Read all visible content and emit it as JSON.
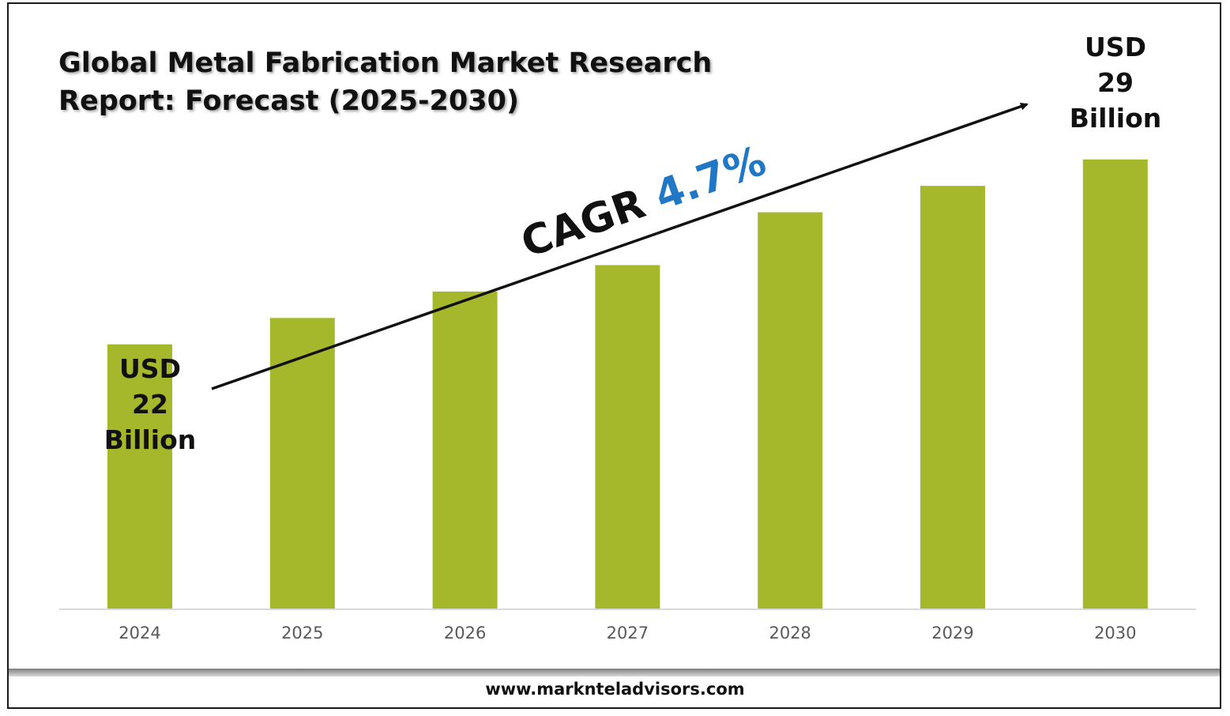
{
  "header": {
    "title_line1": "Global Metal Fabrication Market Research",
    "title_line2": "Report: Forecast (2025-2030)"
  },
  "chart_data": {
    "type": "bar",
    "categories": [
      "2024",
      "2025",
      "2026",
      "2027",
      "2028",
      "2029",
      "2030"
    ],
    "values": [
      22,
      23.0,
      24.0,
      25.0,
      27.0,
      28.0,
      29
    ],
    "ylim": [
      12.0,
      29.8
    ],
    "bar_color": "#a5b82b",
    "grid": false,
    "legend": "none",
    "annotations": {
      "start_label": [
        "USD",
        "22",
        "Billion"
      ],
      "end_label": [
        "USD",
        "29",
        "Billion"
      ],
      "cagr_prefix": "CAGR",
      "cagr_value": "4.7%",
      "cagr_color": "#1f77c6"
    }
  },
  "footer": {
    "website": "www.marknteladvisors.com"
  }
}
